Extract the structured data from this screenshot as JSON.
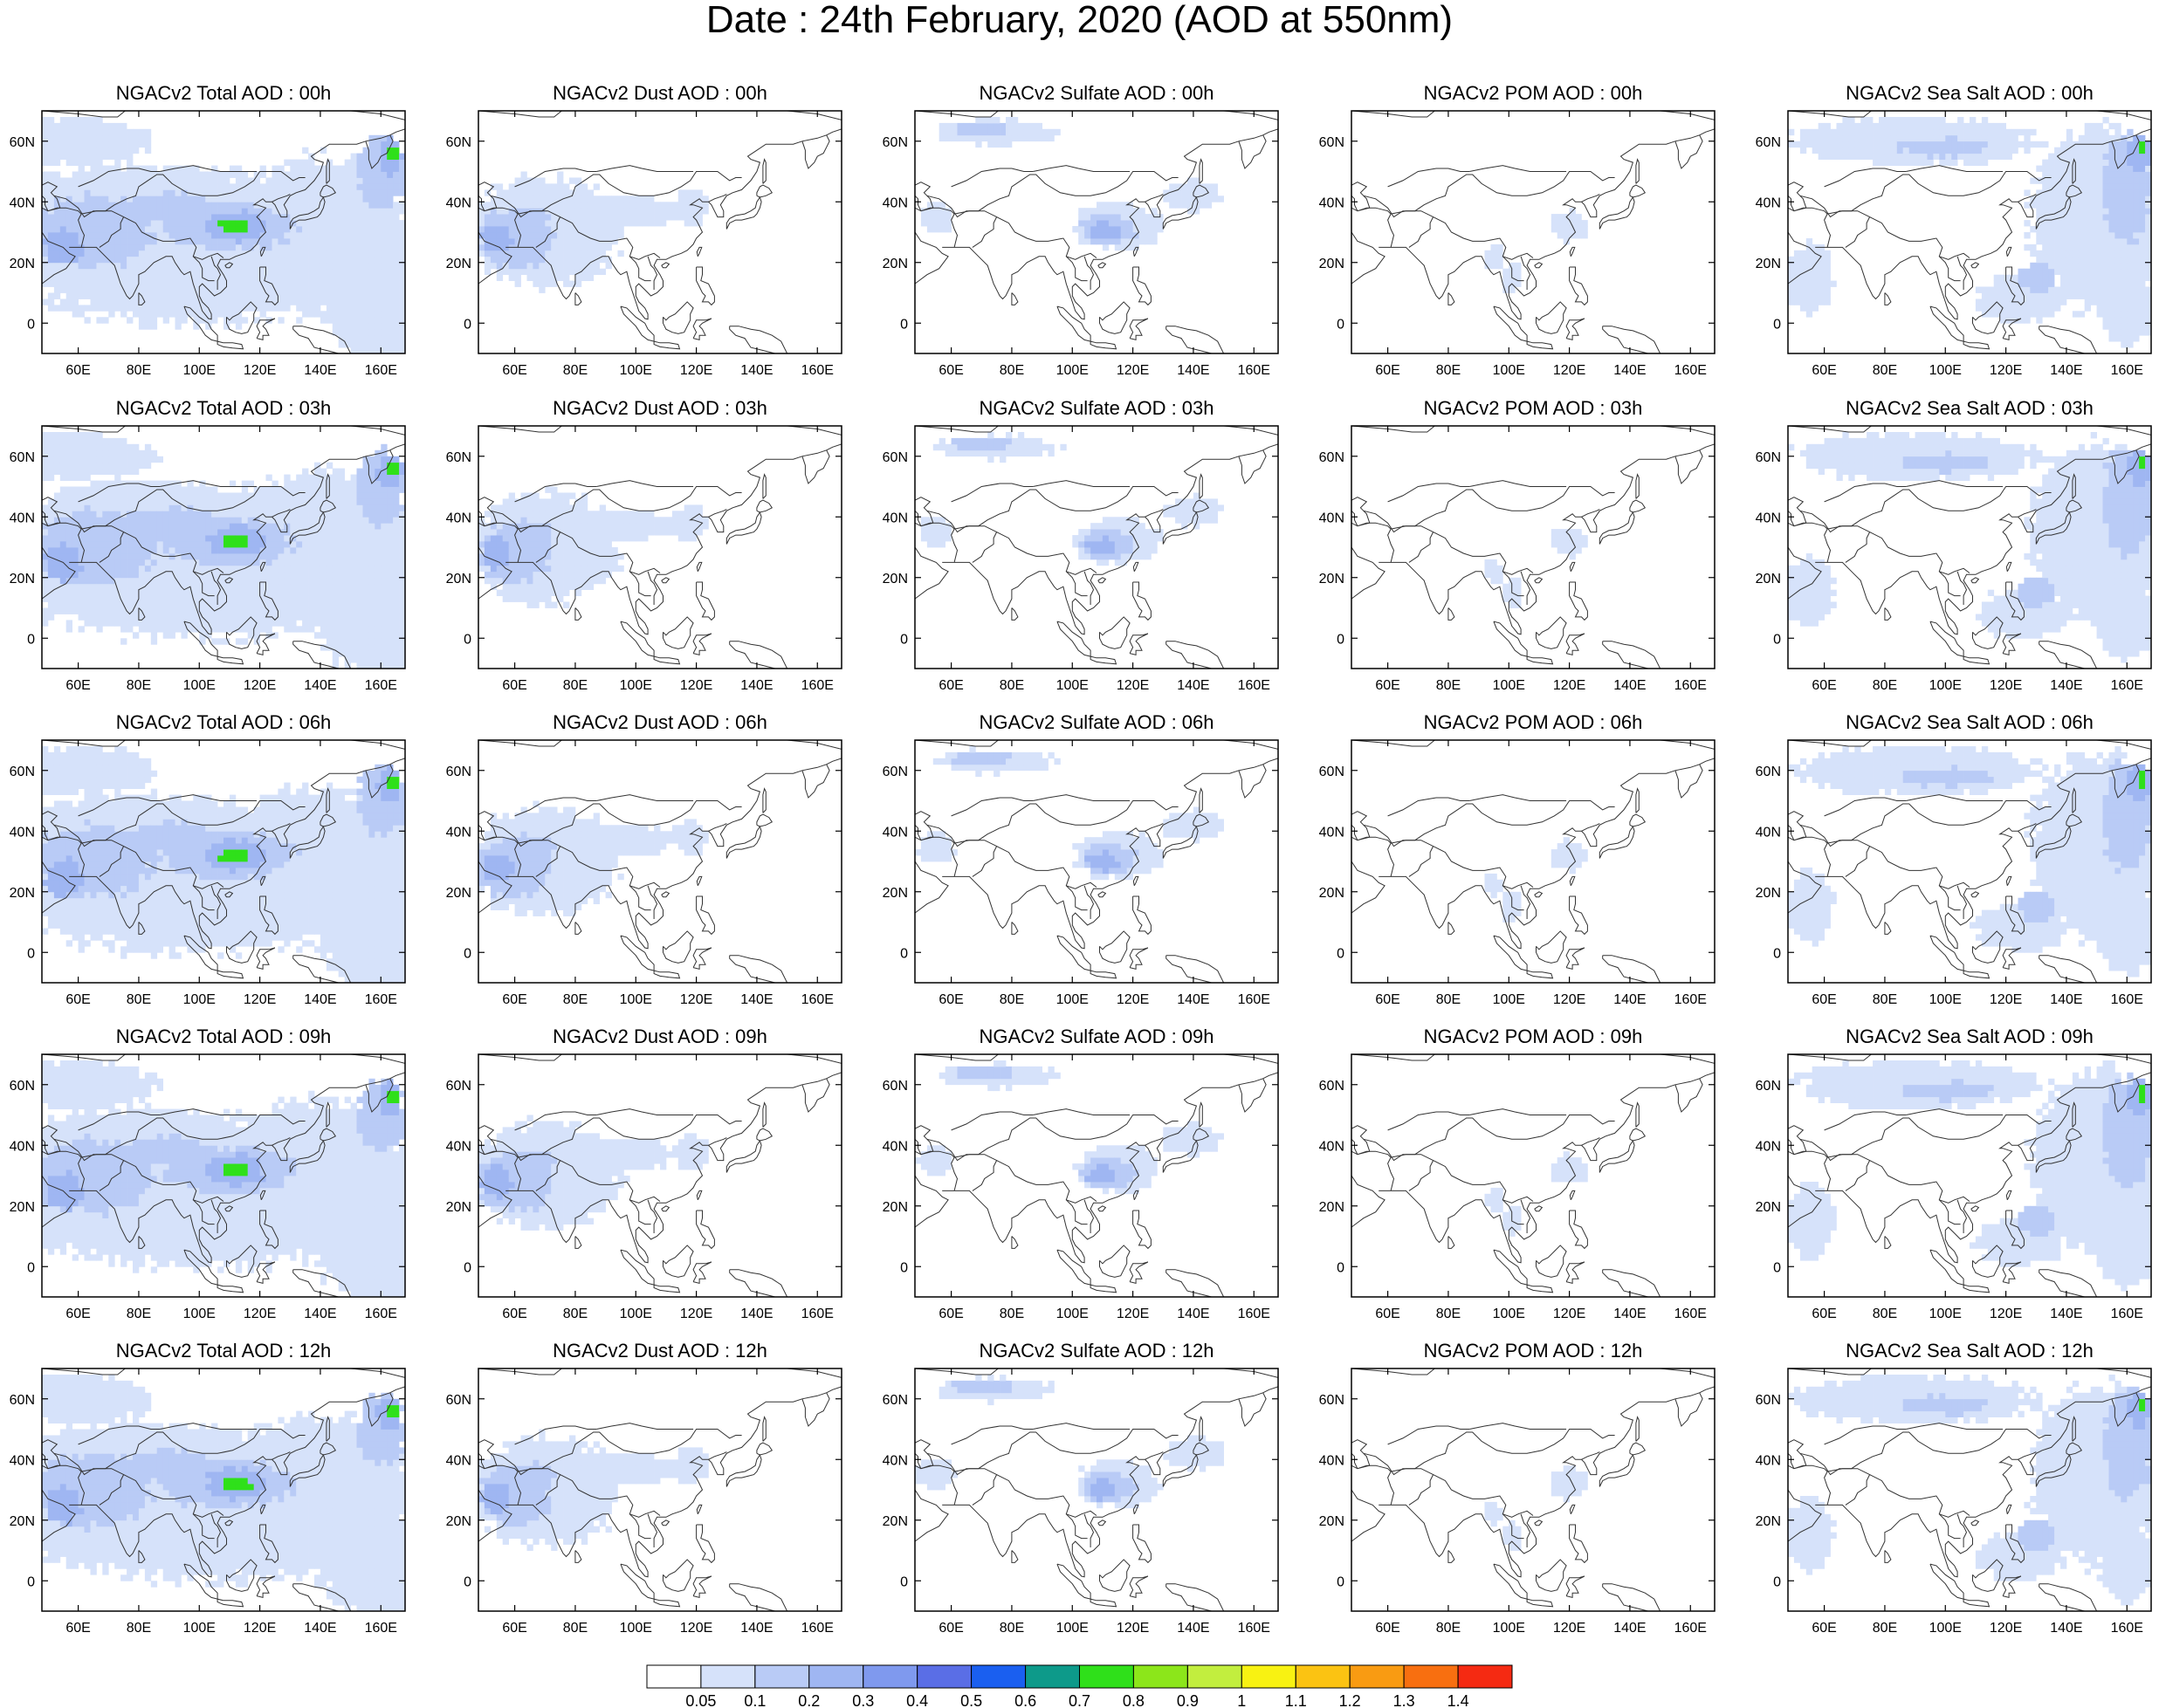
{
  "figure_title": "Date : 24th February, 2020 (AOD at 550nm)",
  "lon_ticks": [
    "60E",
    "80E",
    "100E",
    "120E",
    "140E",
    "160E"
  ],
  "lat_ticks": [
    "60N",
    "40N",
    "20N",
    "0"
  ],
  "panels": [
    [
      "NGACv2 Total AOD : 00h",
      "NGACv2 Dust AOD : 00h",
      "NGACv2 Sulfate AOD : 00h",
      "NGACv2 POM AOD : 00h",
      "NGACv2 Sea Salt AOD : 00h"
    ],
    [
      "NGACv2 Total AOD : 03h",
      "NGACv2 Dust AOD : 03h",
      "NGACv2 Sulfate AOD : 03h",
      "NGACv2 POM AOD : 03h",
      "NGACv2 Sea Salt AOD : 03h"
    ],
    [
      "NGACv2 Total AOD : 06h",
      "NGACv2 Dust AOD : 06h",
      "NGACv2 Sulfate AOD : 06h",
      "NGACv2 POM AOD : 06h",
      "NGACv2 Sea Salt AOD : 06h"
    ],
    [
      "NGACv2 Total AOD : 09h",
      "NGACv2 Dust AOD : 09h",
      "NGACv2 Sulfate AOD : 09h",
      "NGACv2 POM AOD : 09h",
      "NGACv2 Sea Salt  AOD : 09h"
    ],
    [
      "NGACv2 Total AOD  : 12h",
      "NGACv2 Dust AOD : 12h",
      "NGACv2 Sulfate AOD : 12h",
      "NGACv2 POM  AOD : 12h",
      "NGACv2 Sea Salt  AOD : 12h"
    ]
  ],
  "colorbar": {
    "labels": [
      "0.05",
      "0.1",
      "0.2",
      "0.3",
      "0.4",
      "0.5",
      "0.6",
      "0.7",
      "0.8",
      "0.9",
      "1",
      "1.1",
      "1.2",
      "1.3",
      "1.4"
    ],
    "colors": [
      "#ffffff",
      "#d6e2fa",
      "#b9cbf6",
      "#9fb6f2",
      "#7f99ee",
      "#5a6ee6",
      "#1a5ff0",
      "#0d9a8a",
      "#2fe01a",
      "#8ce61a",
      "#c2ee3e",
      "#f8f212",
      "#fbc312",
      "#f99b12",
      "#f86f10",
      "#f52a12"
    ]
  },
  "map_colors": {
    "band1": "#d6e2fa",
    "band2": "#b9cbf6",
    "band3": "#9fb6f2",
    "band4": "#7f99ee",
    "band5": "#5a6ee6",
    "green": "#2fe01a",
    "coast": "#333333"
  }
}
